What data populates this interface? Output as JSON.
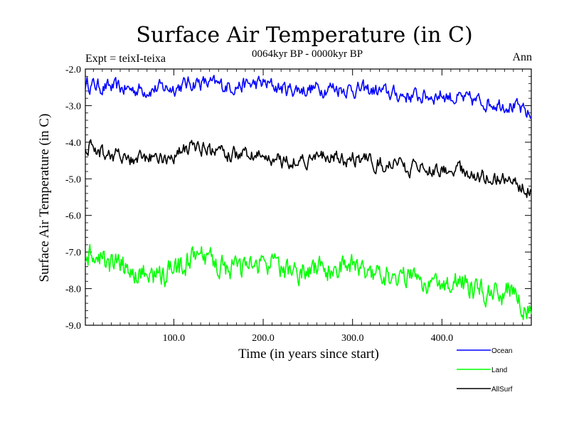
{
  "chart_data": {
    "type": "line",
    "title": "Surface Air Temperature (in C)",
    "subtitle": "0064kyr BP - 0000kyr BP",
    "left_note": "Expt = teixI-teixa",
    "right_note": "Ann",
    "xlabel": "Time (in years since start)",
    "ylabel": "Surface Air Temperature (in C)",
    "xlim": [
      1,
      500
    ],
    "ylim": [
      -9.0,
      -2.0
    ],
    "xticks": [
      100,
      200,
      300,
      400
    ],
    "xtick_labels": [
      "100.0",
      "200.0",
      "300.0",
      "400.0"
    ],
    "yticks": [
      -2.0,
      -3.0,
      -4.0,
      -5.0,
      -6.0,
      -7.0,
      -8.0,
      -9.0
    ],
    "ytick_labels": [
      "-2.0",
      "-3.0",
      "-4.0",
      "-5.0",
      "-6.0",
      "-7.0",
      "-8.0",
      "-9.0"
    ],
    "grid": false,
    "legend_position": "bottom-right, below plot",
    "x_sample": [
      1,
      25,
      50,
      75,
      100,
      125,
      150,
      175,
      200,
      225,
      250,
      275,
      300,
      325,
      350,
      375,
      400,
      425,
      450,
      475,
      500
    ],
    "series": [
      {
        "name": "Ocean",
        "color": "#0000ff",
        "values": [
          -2.4,
          -2.5,
          -2.55,
          -2.55,
          -2.5,
          -2.35,
          -2.45,
          -2.45,
          -2.4,
          -2.55,
          -2.55,
          -2.5,
          -2.55,
          -2.6,
          -2.7,
          -2.75,
          -2.7,
          -2.85,
          -2.9,
          -2.95,
          -3.3
        ]
      },
      {
        "name": "Land",
        "color": "#00ff00",
        "values": [
          -7.1,
          -7.3,
          -7.5,
          -7.65,
          -7.55,
          -7.15,
          -7.35,
          -7.5,
          -7.3,
          -7.55,
          -7.45,
          -7.5,
          -7.35,
          -7.5,
          -7.65,
          -7.75,
          -7.8,
          -7.85,
          -8.15,
          -8.05,
          -8.7
        ]
      },
      {
        "name": "AllSurf",
        "color": "#000000",
        "values": [
          -4.1,
          -4.3,
          -4.5,
          -4.45,
          -4.35,
          -4.1,
          -4.3,
          -4.35,
          -4.4,
          -4.5,
          -4.45,
          -4.45,
          -4.45,
          -4.55,
          -4.65,
          -4.75,
          -4.7,
          -4.85,
          -4.95,
          -5.0,
          -5.35
        ]
      }
    ]
  }
}
